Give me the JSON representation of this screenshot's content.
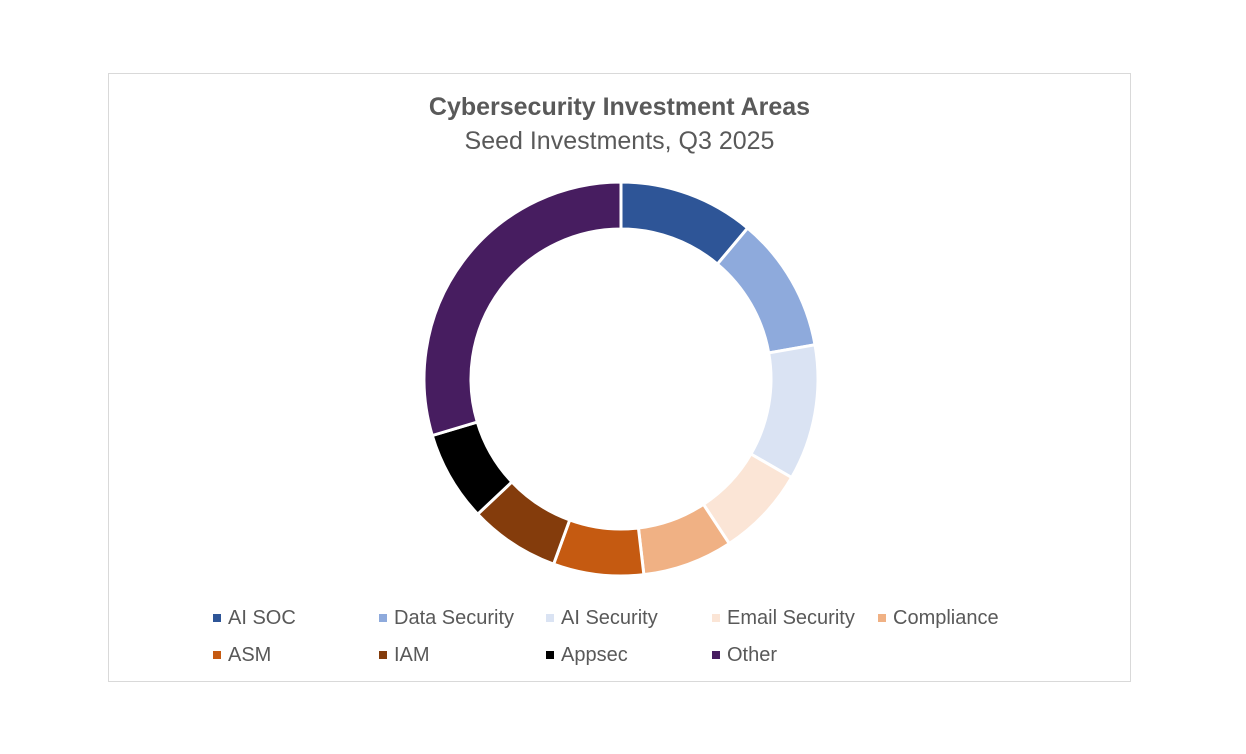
{
  "chart_data": {
    "type": "pie",
    "title": "Cybersecurity Investment Areas",
    "subtitle": "Seed Investments, Q3 2025",
    "categories": [
      "AI SOC",
      "Data Security",
      "AI Security",
      "Email Security",
      "Compliance",
      "ASM",
      "IAM",
      "Appsec",
      "Other"
    ],
    "values": [
      11.1,
      11.1,
      11.1,
      7.4,
      7.4,
      7.4,
      7.4,
      7.4,
      29.6
    ],
    "colors": [
      "#2E5597",
      "#8EAADC",
      "#DAE3F3",
      "#FBE5D6",
      "#F0B184",
      "#C55A11",
      "#843C0C",
      "#000000",
      "#471D60"
    ],
    "donut": true,
    "legend": "bottom",
    "legend_entries": [
      {
        "label": "AI SOC",
        "color": "#2E5597"
      },
      {
        "label": "Data Security",
        "color": "#8EAADC"
      },
      {
        "label": "AI Security",
        "color": "#DAE3F3"
      },
      {
        "label": "Email Security",
        "color": "#FBE5D6"
      },
      {
        "label": "Compliance",
        "color": "#F0B184"
      },
      {
        "label": "ASM",
        "color": "#C55A11"
      },
      {
        "label": "IAM",
        "color": "#843C0C"
      },
      {
        "label": "Appsec",
        "color": "#000000"
      },
      {
        "label": "Other",
        "color": "#471D60"
      }
    ]
  }
}
